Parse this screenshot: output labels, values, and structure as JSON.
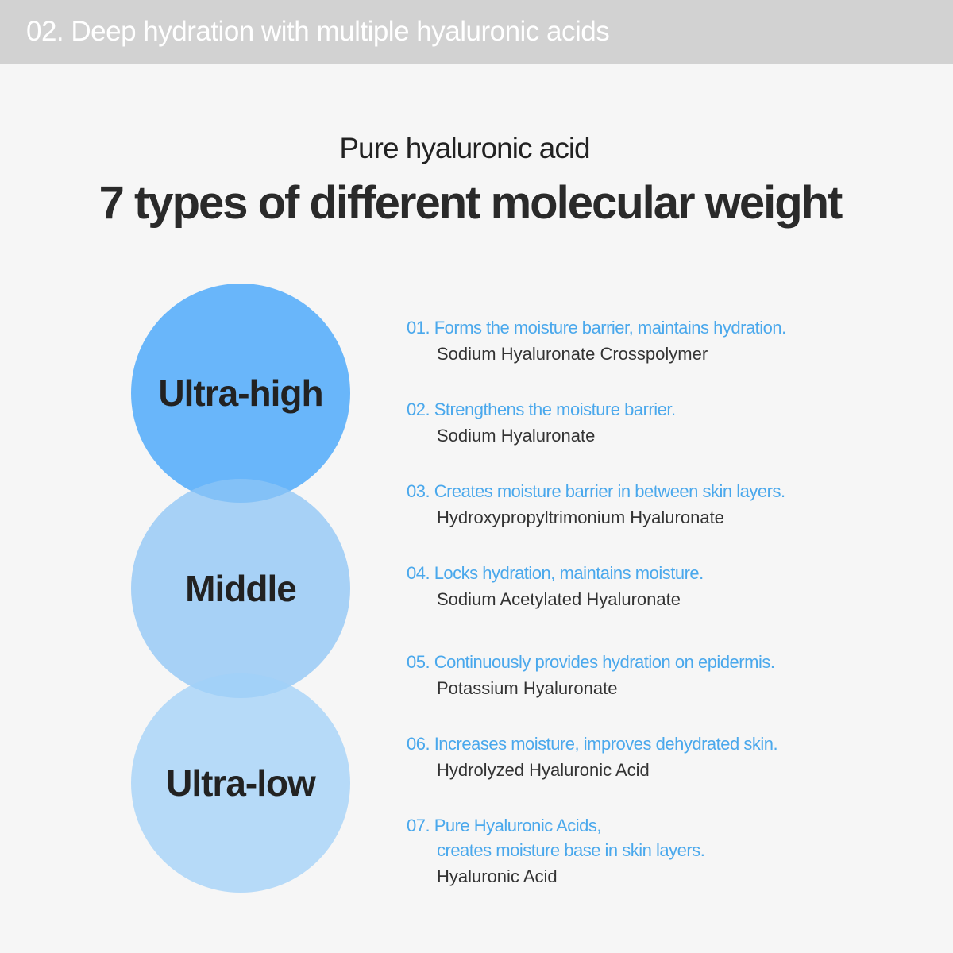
{
  "header": {
    "title": "02. Deep hydration with multiple hyaluronic acids"
  },
  "subtitle": "Pure hyaluronic acid",
  "title": "7 types of different molecular weight",
  "circles": [
    "Ultra-high",
    "Middle",
    "Ultra-low"
  ],
  "colors": {
    "accent": "#4aa8ec",
    "circle_top": "#6bb8fb",
    "circle_middle": "#a3d0f8",
    "circle_bottom": "#b3d9f9",
    "header_bg": "#d2d2d2"
  },
  "items": [
    {
      "benefit": "01. Forms the moisture barrier, maintains hydration.",
      "ingredient": "Sodium Hyaluronate Crosspolymer"
    },
    {
      "benefit": "02. Strengthens the moisture barrier.",
      "ingredient": "Sodium Hyaluronate"
    },
    {
      "benefit": "03. Creates moisture barrier in between skin layers.",
      "ingredient": "Hydroxypropyltrimonium Hyaluronate"
    },
    {
      "benefit": "04. Locks hydration, maintains moisture.",
      "ingredient": "Sodium Acetylated Hyaluronate"
    },
    {
      "benefit": "05. Continuously provides hydration on epidermis.",
      "ingredient": "Potassium Hyaluronate"
    },
    {
      "benefit": "06. Increases moisture, improves dehydrated skin.",
      "ingredient": "Hydrolyzed Hyaluronic Acid"
    },
    {
      "benefit": "07. Pure Hyaluronic Acids,",
      "benefit_cont": "creates moisture base in skin layers.",
      "ingredient": "Hyaluronic Acid"
    }
  ]
}
